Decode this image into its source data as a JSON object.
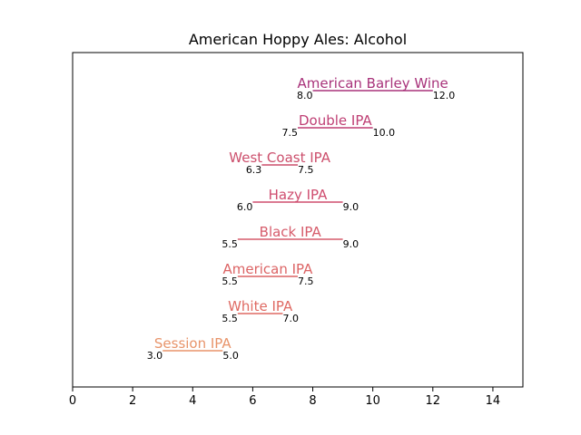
{
  "chart_data": {
    "type": "range-bar",
    "title": "American Hoppy Ales: Alcohol",
    "xlabel": "",
    "ylabel": "",
    "xlim": [
      0,
      15
    ],
    "xticks": [
      0,
      2,
      4,
      6,
      8,
      10,
      12,
      14
    ],
    "grid": false,
    "legend": "none",
    "ranges": [
      {
        "label": "American Barley Wine",
        "low": 8.0,
        "high": 12.0,
        "low_label": "8.0",
        "high_label": "12.0",
        "color": "#a8327a"
      },
      {
        "label": "Double IPA",
        "low": 7.5,
        "high": 10.0,
        "low_label": "7.5",
        "high_label": "10.0",
        "color": "#bf3f74"
      },
      {
        "label": "West Coast IPA",
        "low": 6.3,
        "high": 7.5,
        "low_label": "6.3",
        "high_label": "7.5",
        "color": "#cc4f6c"
      },
      {
        "label": "Hazy IPA",
        "low": 6.0,
        "high": 9.0,
        "low_label": "6.0",
        "high_label": "9.0",
        "color": "#cf4d6f"
      },
      {
        "label": "Black IPA",
        "low": 5.5,
        "high": 9.0,
        "low_label": "5.5",
        "high_label": "9.0",
        "color": "#d65c6b"
      },
      {
        "label": "American IPA",
        "low": 5.5,
        "high": 7.5,
        "low_label": "5.5",
        "high_label": "7.5",
        "color": "#dc6465"
      },
      {
        "label": "White IPA",
        "low": 5.5,
        "high": 7.0,
        "low_label": "5.5",
        "high_label": "7.0",
        "color": "#df6a63"
      },
      {
        "label": "Session IPA",
        "low": 3.0,
        "high": 5.0,
        "low_label": "3.0",
        "high_label": "5.0",
        "color": "#e8946a"
      }
    ]
  }
}
